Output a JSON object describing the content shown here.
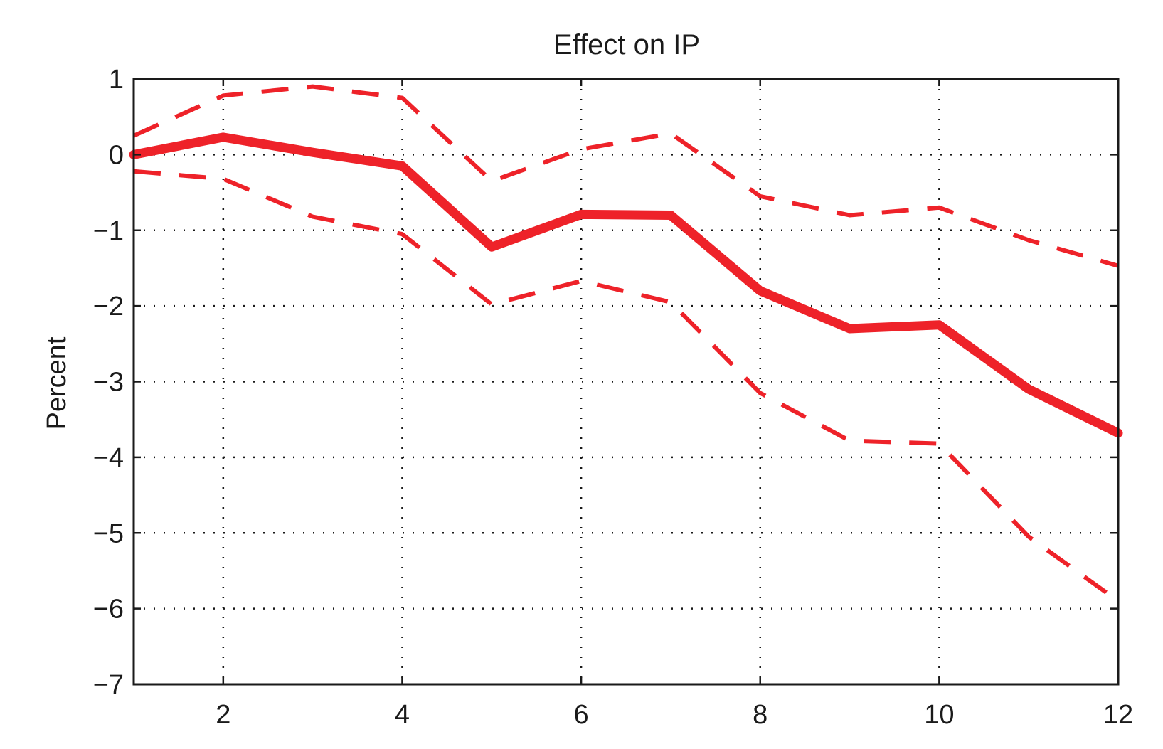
{
  "chart_data": {
    "type": "line",
    "title": "Effect on IP",
    "xlabel": "",
    "ylabel": "Percent",
    "xlim": [
      1,
      12
    ],
    "ylim": [
      -7,
      1
    ],
    "xticks": [
      2,
      4,
      6,
      8,
      10,
      12
    ],
    "yticks": [
      1,
      0,
      -1,
      -2,
      -3,
      -4,
      -5,
      -6,
      -7
    ],
    "ytick_labels": [
      "1",
      "0",
      "−1",
      "−2",
      "−3",
      "−4",
      "−5",
      "−6",
      "−7"
    ],
    "grid": true,
    "x": [
      1,
      2,
      3,
      4,
      5,
      6,
      7,
      8,
      9,
      10,
      11,
      12
    ],
    "series": [
      {
        "role": "estimate",
        "style": "solid",
        "color": "#ee2229",
        "values": [
          0.0,
          0.23,
          0.03,
          -0.15,
          -1.22,
          -0.79,
          -0.8,
          -1.8,
          -2.3,
          -2.25,
          -3.1,
          -3.68
        ]
      },
      {
        "role": "upper-band",
        "style": "dashed",
        "color": "#ee2229",
        "values": [
          0.25,
          0.78,
          0.9,
          0.75,
          -0.35,
          0.07,
          0.28,
          -0.55,
          -0.8,
          -0.7,
          -1.13,
          -1.47
        ]
      },
      {
        "role": "lower-band",
        "style": "dashed",
        "color": "#ee2229",
        "values": [
          -0.22,
          -0.32,
          -0.82,
          -1.05,
          -1.98,
          -1.67,
          -1.95,
          -3.15,
          -3.78,
          -3.82,
          -5.05,
          -5.9
        ]
      }
    ]
  }
}
